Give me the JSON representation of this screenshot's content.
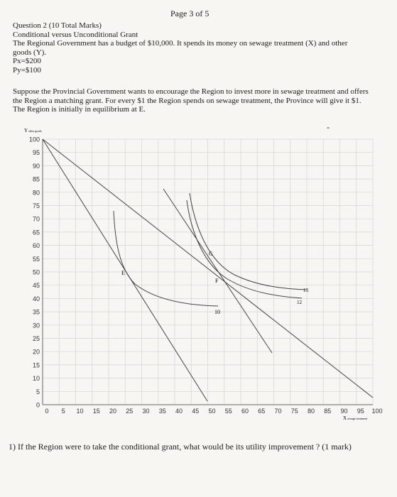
{
  "page_label": "Page 3 of 5",
  "question": {
    "title": "Question 2 (10 Total Marks)",
    "subtitle": "Conditional versus Unconditional Grant",
    "body": "The Regional Government has a budget of $10,000. It spends its money on sewage treatment (X) and other goods (Y).",
    "px": "Px=$200",
    "py": "Py=$100"
  },
  "scenario": "Suppose the Provincial Government wants to encourage the Region to invest more in sewage treatment and offers the Region a matching grant. For every $1 the Region spends on sewage treatment, the Province will give it $1. The Region is initially in equilibrium at E.",
  "stray_mark": "-",
  "graph": {
    "y_axis_label": "Y",
    "y_axis_sub": "other goods",
    "x_axis_label": "X",
    "x_axis_sub": "sewage treatment",
    "y_ticks": [
      "100",
      "95",
      "90",
      "85",
      "80",
      "75",
      "70",
      "65",
      "60",
      "55",
      "50",
      "45",
      "40",
      "35",
      "30",
      "25",
      "20",
      "15",
      "10",
      "5",
      "0"
    ],
    "x_ticks": [
      "0",
      "5",
      "10",
      "15",
      "20",
      "25",
      "30",
      "35",
      "40",
      "45",
      "50",
      "55",
      "60",
      "65",
      "70",
      "75",
      "80",
      "85",
      "90",
      "95",
      "100"
    ],
    "point_labels": {
      "E": "E",
      "F": "F",
      "G": "G"
    },
    "curve_labels": {
      "ic10": "10",
      "ic12": "12",
      "ic13": "13"
    }
  },
  "question_1": "1) If the Region were to take the conditional grant, what would be its utility improvement ? (1 mark)"
}
